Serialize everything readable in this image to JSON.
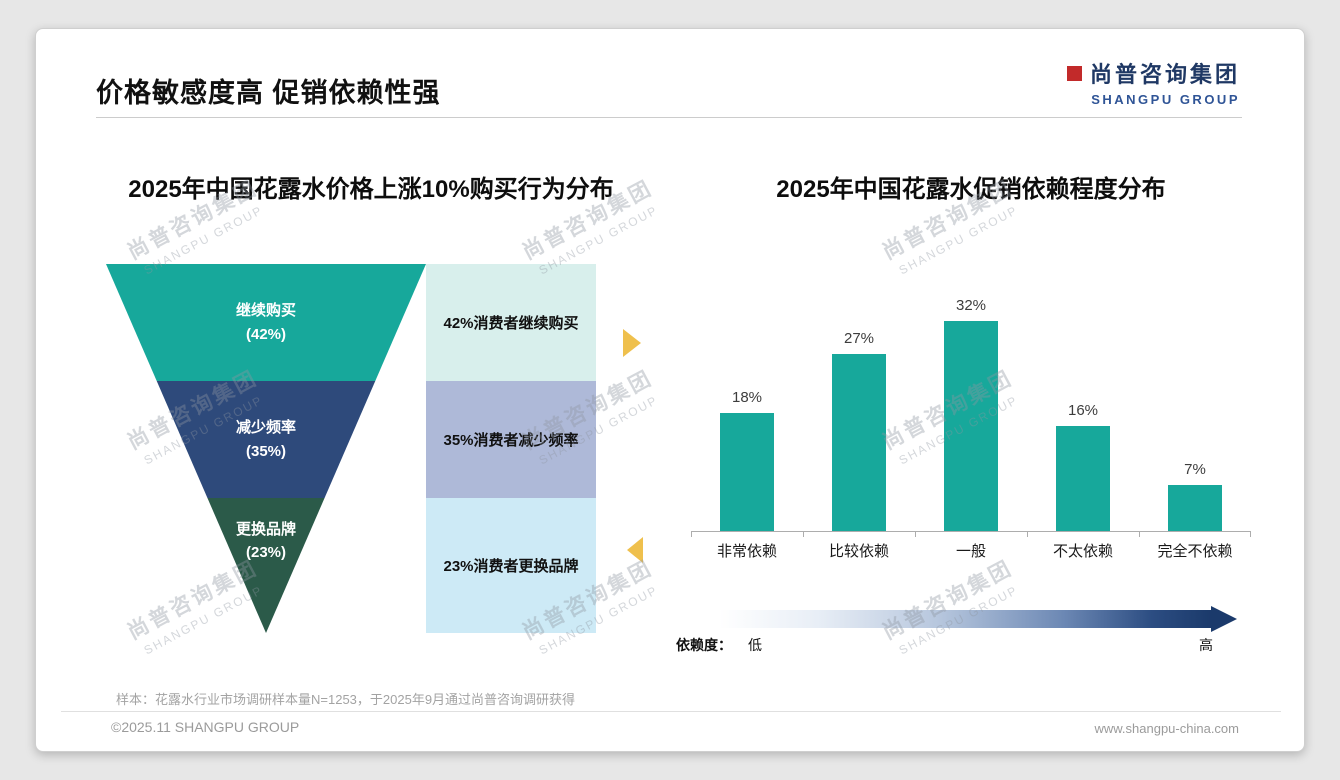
{
  "page": {
    "header_title": "价格敏感度高 促销依赖性强",
    "logo_cn": "尚普咨询集团",
    "logo_en": "SHANGPU GROUP",
    "watermark_cn": "尚普咨询集团",
    "watermark_en": "SHANGPU GROUP",
    "footnote": "样本：花露水行业市场调研样本量N=1253，于2025年9月通过尚普咨询调研获得",
    "footer_left": "©2025.11 SHANGPU GROUP",
    "footer_right": "www.shangpu-china.com"
  },
  "colors": {
    "teal": "#17a89b",
    "dark_blue": "#2e4a7b",
    "dark_green": "#2b5a49",
    "light_teal_box": "#d8efec",
    "periwinkle_box": "#aeb9d8",
    "light_cyan_box": "#cdeaf6",
    "arrow_yellow": "#efc04d",
    "logo_navy": "#1f3864",
    "gradient_dark": "#1b3a6b"
  },
  "chart_data": [
    {
      "type": "funnel",
      "title": "2025年中国花露水价格上涨10%购买行为分布",
      "categories": [
        "继续购买",
        "减少频率",
        "更换品牌"
      ],
      "values": [
        42,
        35,
        23
      ],
      "unit": "%",
      "value_labels": [
        "(42%)",
        "(35%)",
        "(23%)"
      ],
      "annotations": [
        "42%消费者继续购买",
        "35%消费者减少频率",
        "23%消费者更换品牌"
      ],
      "colors": [
        "#17a89b",
        "#2e4a7b",
        "#2b5a49"
      ],
      "annotation_colors": [
        "#d8efec",
        "#aeb9d8",
        "#cdeaf6"
      ]
    },
    {
      "type": "bar",
      "title": "2025年中国花露水促销依赖程度分布",
      "categories": [
        "非常依赖",
        "比较依赖",
        "一般",
        "不太依赖",
        "完全不依赖"
      ],
      "values": [
        18,
        27,
        32,
        16,
        7
      ],
      "value_labels": [
        "18%",
        "27%",
        "32%",
        "16%",
        "7%"
      ],
      "unit": "%",
      "ylim": [
        0,
        35
      ],
      "grid": false,
      "legend": false,
      "bar_color": "#17a89b",
      "x_axis_annotation": {
        "label": "依赖度：",
        "left": "低",
        "right": "高"
      }
    }
  ]
}
